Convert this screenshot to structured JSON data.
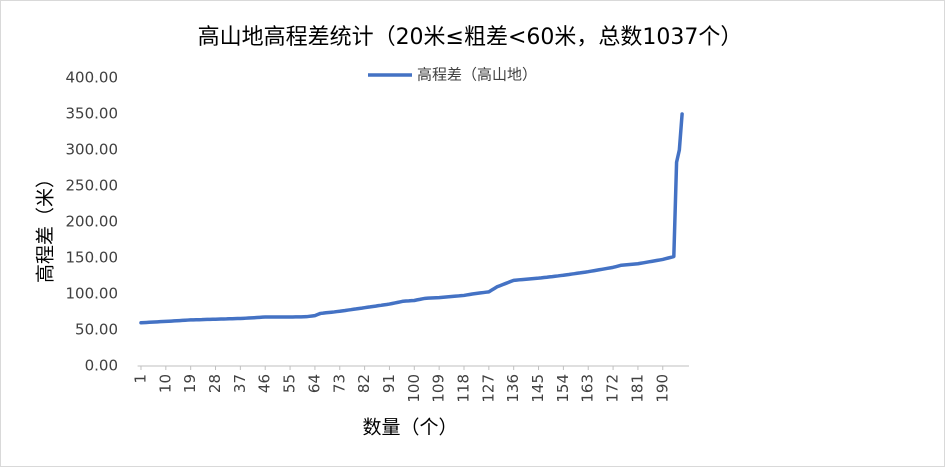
{
  "chart_data": {
    "type": "line",
    "title": "高山地高程差统计（20米≤粗差<60米，总数1037个）",
    "x_label": "数量（个）",
    "y_label": "高程差（米）",
    "legend": "top",
    "grid": false,
    "xlim": [
      0.5,
      199.5
    ],
    "xticks": [
      1,
      10,
      19,
      28,
      37,
      46,
      55,
      64,
      73,
      82,
      91,
      100,
      109,
      118,
      127,
      136,
      145,
      154,
      163,
      172,
      181,
      190
    ],
    "ylim": [
      0,
      400
    ],
    "yticks": [
      {
        "value": 0,
        "label": "0.00"
      },
      {
        "value": 50,
        "label": "50.00"
      },
      {
        "value": 100,
        "label": "100.00"
      },
      {
        "value": 150,
        "label": "150.00"
      },
      {
        "value": 200,
        "label": "200.00"
      },
      {
        "value": 250,
        "label": "250.00"
      },
      {
        "value": 300,
        "label": "300.00"
      },
      {
        "value": 350,
        "label": "350.00"
      },
      {
        "value": 400,
        "label": "400.00"
      }
    ],
    "x": [
      1,
      2,
      3,
      4,
      5,
      6,
      7,
      8,
      9,
      10,
      11,
      12,
      13,
      14,
      15,
      16,
      17,
      18,
      19,
      20,
      21,
      22,
      23,
      24,
      25,
      26,
      27,
      28,
      29,
      30,
      31,
      32,
      33,
      34,
      35,
      36,
      37,
      38,
      39,
      40,
      41,
      42,
      43,
      44,
      45,
      46,
      47,
      48,
      49,
      50,
      51,
      52,
      53,
      54,
      55,
      56,
      57,
      58,
      59,
      60,
      61,
      62,
      63,
      64,
      65,
      66,
      67,
      68,
      69,
      70,
      71,
      72,
      73,
      74,
      75,
      76,
      77,
      78,
      79,
      80,
      81,
      82,
      83,
      84,
      85,
      86,
      87,
      88,
      89,
      90,
      91,
      92,
      93,
      94,
      95,
      96,
      97,
      98,
      99,
      100,
      101,
      102,
      103,
      104,
      105,
      106,
      107,
      108,
      109,
      110,
      111,
      112,
      113,
      114,
      115,
      116,
      117,
      118,
      119,
      120,
      121,
      122,
      123,
      124,
      125,
      126,
      127,
      128,
      129,
      130,
      131,
      132,
      133,
      134,
      135,
      136,
      137,
      138,
      139,
      140,
      141,
      142,
      143,
      144,
      145,
      146,
      147,
      148,
      149,
      150,
      151,
      152,
      153,
      154,
      155,
      156,
      157,
      158,
      159,
      160,
      161,
      162,
      163,
      164,
      165,
      166,
      167,
      168,
      169,
      170,
      171,
      172,
      173,
      174,
      175,
      176,
      177,
      178,
      179,
      180,
      181,
      182,
      183,
      184,
      185,
      186,
      187,
      188,
      189,
      190,
      191,
      192,
      193,
      194,
      195,
      196,
      197
    ],
    "series": [
      {
        "name": "高程差（高山地）",
        "color": "#4472c4",
        "values": [
          60,
          60.2,
          60.4,
          60.7,
          60.9,
          61.1,
          61.3,
          61.6,
          61.8,
          62,
          62.2,
          62.4,
          62.7,
          62.9,
          63.1,
          63.3,
          63.6,
          63.8,
          64,
          64.1,
          64.2,
          64.3,
          64.4,
          64.6,
          64.7,
          64.8,
          64.9,
          65,
          65.1,
          65.2,
          65.3,
          65.4,
          65.6,
          65.7,
          65.8,
          65.9,
          66,
          66.2,
          66.4,
          66.7,
          66.9,
          67.1,
          67.3,
          67.6,
          67.8,
          68,
          68,
          68,
          68,
          68,
          68,
          68,
          68,
          68,
          68.1,
          68.1,
          68.2,
          68.2,
          68.3,
          68.4,
          68.5,
          69,
          69.5,
          70,
          71.5,
          73,
          73.4,
          73.9,
          74.3,
          74.7,
          75.1,
          75.6,
          76,
          76.6,
          77.1,
          77.7,
          78.2,
          78.8,
          79.3,
          79.9,
          80.4,
          81,
          81.6,
          82.1,
          82.7,
          83.2,
          83.8,
          84.3,
          84.9,
          85.4,
          86,
          86.8,
          87.6,
          88.4,
          89.2,
          90,
          90.3,
          90.5,
          90.8,
          91,
          91.8,
          92.5,
          93.3,
          94,
          94.2,
          94.4,
          94.6,
          94.8,
          95,
          95.3,
          95.7,
          96,
          96.3,
          96.7,
          97,
          97.3,
          97.7,
          98,
          98.7,
          99.3,
          100,
          100.5,
          101,
          101.5,
          102,
          102.5,
          103,
          105.3,
          107.7,
          110,
          111.5,
          113,
          114.5,
          116,
          117.5,
          119,
          119.3,
          119.7,
          120,
          120.3,
          120.7,
          121,
          121.3,
          121.7,
          122,
          122.4,
          122.9,
          123.3,
          123.8,
          124.2,
          124.7,
          125.1,
          125.6,
          126,
          126.6,
          127.1,
          127.7,
          128.2,
          128.8,
          129.3,
          129.9,
          130.4,
          131,
          131.7,
          132.3,
          133,
          133.7,
          134.3,
          135,
          135.7,
          136.3,
          137,
          138,
          139,
          140,
          140.3,
          140.7,
          141,
          141.3,
          141.7,
          142,
          142.7,
          143.3,
          144,
          144.7,
          145.3,
          146,
          146.7,
          147.3,
          148,
          149,
          150,
          151,
          152,
          283,
          300,
          350
        ]
      }
    ]
  }
}
